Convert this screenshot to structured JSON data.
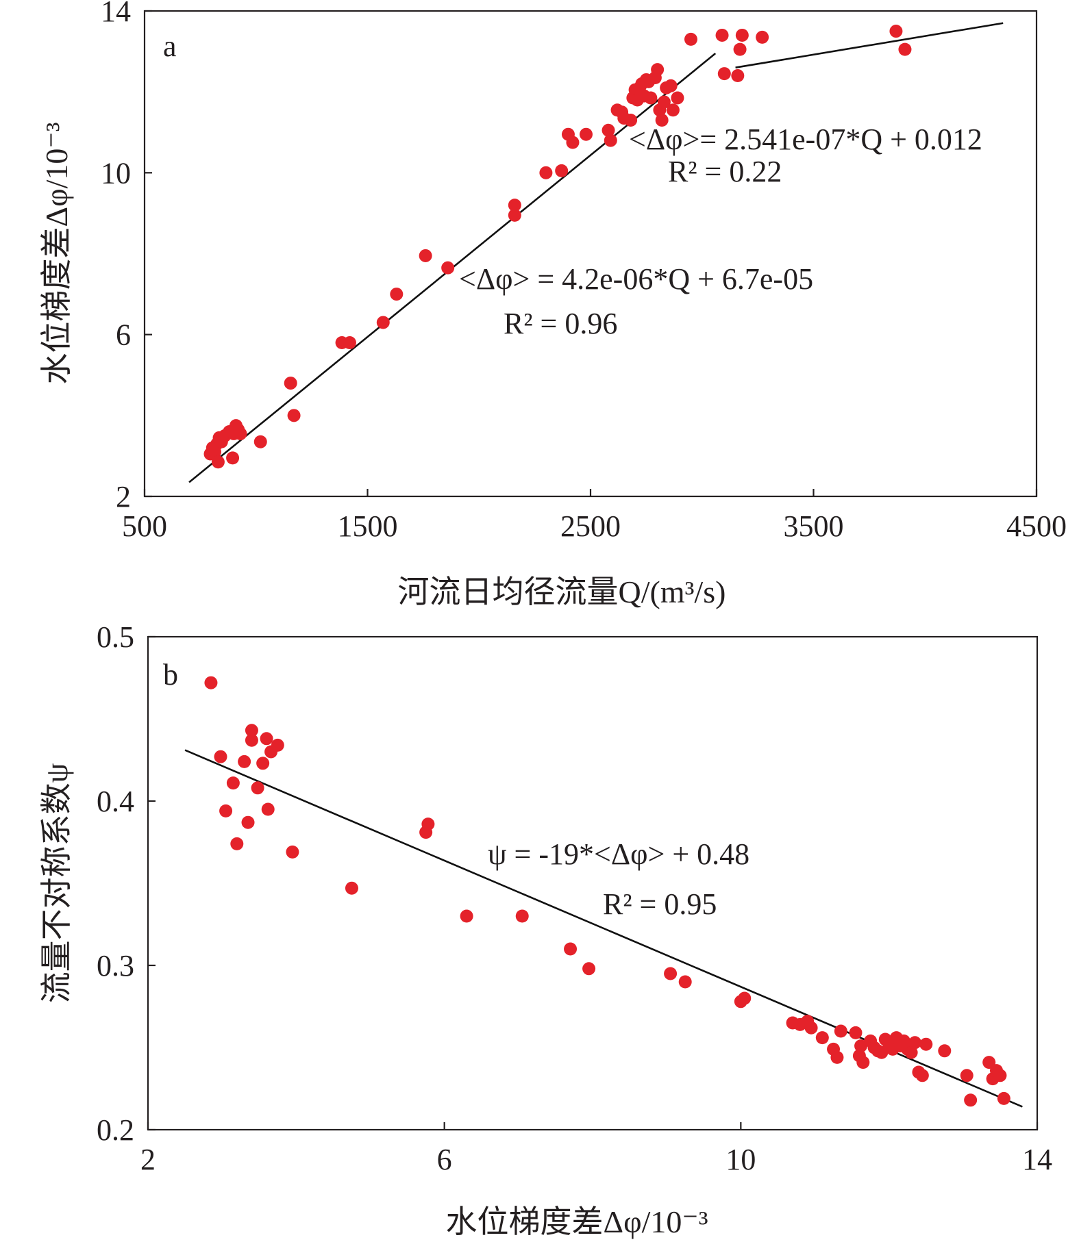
{
  "chart_data": [
    {
      "type": "scatter",
      "panel_label": "a",
      "xlabel": "河流日均径流量Q/(m³/s)",
      "ylabel": "水位梯度差Δφ/10⁻³",
      "xlim": [
        500,
        4500
      ],
      "ylim": [
        2,
        14
      ],
      "xticks": [
        "500",
        "1500",
        "2500",
        "3500",
        "4500"
      ],
      "xtick_values": [
        500,
        1500,
        2500,
        3500,
        4500
      ],
      "yticks": [
        "2",
        "6",
        "10",
        "14"
      ],
      "ytick_values": [
        2,
        6,
        10,
        14
      ],
      "annotations": [
        {
          "eq": "<Δφ>= 2.541e-07*Q + 0.012",
          "r2": "R² = 0.22"
        },
        {
          "eq": "<Δφ> = 4.2e-06*Q + 6.7e-05",
          "r2": "R² = 0.96"
        }
      ],
      "fit_lines": [
        {
          "x": [
            700,
            3060
          ],
          "y": [
            2.35,
            12.95
          ]
        },
        {
          "x": [
            3150,
            4350
          ],
          "y": [
            12.6,
            13.7
          ]
        }
      ],
      "series": [
        {
          "points": [
            [
              795,
              3.05
            ],
            [
              805,
              3.2
            ],
            [
              815,
              3.1
            ],
            [
              825,
              3.3
            ],
            [
              835,
              3.45
            ],
            [
              845,
              3.35
            ],
            [
              830,
              2.85
            ],
            [
              860,
              3.5
            ],
            [
              880,
              3.6
            ],
            [
              900,
              3.55
            ],
            [
              910,
              3.75
            ],
            [
              920,
              3.65
            ],
            [
              930,
              3.55
            ],
            [
              895,
              2.95
            ],
            [
              1020,
              3.35
            ],
            [
              1155,
              4.8
            ],
            [
              1170,
              4.0
            ],
            [
              1385,
              5.8
            ],
            [
              1420,
              5.8
            ],
            [
              1570,
              6.3
            ],
            [
              1630,
              7.0
            ],
            [
              1760,
              7.95
            ],
            [
              1860,
              7.65
            ],
            [
              2160,
              9.2
            ],
            [
              2160,
              8.95
            ],
            [
              2300,
              10.0
            ],
            [
              2370,
              10.05
            ],
            [
              2400,
              10.95
            ],
            [
              2420,
              10.75
            ],
            [
              2480,
              10.95
            ],
            [
              2580,
              11.05
            ],
            [
              2590,
              10.8
            ],
            [
              2620,
              11.55
            ],
            [
              2640,
              11.5
            ],
            [
              2650,
              11.35
            ],
            [
              2680,
              11.3
            ],
            [
              2690,
              11.85
            ],
            [
              2700,
              12.05
            ],
            [
              2710,
              11.8
            ],
            [
              2720,
              12.1
            ],
            [
              2730,
              12.2
            ],
            [
              2740,
              11.9
            ],
            [
              2750,
              12.3
            ],
            [
              2760,
              12.25
            ],
            [
              2770,
              11.85
            ],
            [
              2790,
              12.35
            ],
            [
              2800,
              12.55
            ],
            [
              2810,
              11.55
            ],
            [
              2820,
              11.3
            ],
            [
              2830,
              11.75
            ],
            [
              2840,
              12.1
            ],
            [
              2860,
              12.15
            ],
            [
              2870,
              11.55
            ],
            [
              2890,
              11.85
            ],
            [
              2950,
              13.3
            ],
            [
              3090,
              13.4
            ],
            [
              3100,
              12.45
            ],
            [
              3160,
              12.4
            ],
            [
              3170,
              13.05
            ],
            [
              3180,
              13.4
            ],
            [
              3270,
              13.35
            ],
            [
              3870,
              13.5
            ],
            [
              3910,
              13.05
            ]
          ]
        }
      ]
    },
    {
      "type": "scatter",
      "panel_label": "b",
      "xlabel": "水位梯度差Δφ/10⁻³",
      "ylabel": "流量不对称系数ψ",
      "xlim": [
        2,
        14
      ],
      "ylim": [
        0.2,
        0.5
      ],
      "xticks": [
        "2",
        "6",
        "10",
        "14"
      ],
      "xtick_values": [
        2,
        6,
        10,
        14
      ],
      "yticks": [
        "0.2",
        "0.3",
        "0.4",
        "0.5"
      ],
      "ytick_values": [
        0.2,
        0.3,
        0.4,
        0.5
      ],
      "annotations": [
        {
          "eq": "ψ = -19*<Δφ> + 0.48",
          "r2": "R² = 0.95"
        }
      ],
      "fit_lines": [
        {
          "x": [
            2.5,
            13.8
          ],
          "y": [
            0.431,
            0.214
          ]
        }
      ],
      "series": [
        {
          "points": [
            [
              2.85,
              0.472
            ],
            [
              2.98,
              0.427
            ],
            [
              3.05,
              0.394
            ],
            [
              3.15,
              0.411
            ],
            [
              3.2,
              0.374
            ],
            [
              3.3,
              0.424
            ],
            [
              3.35,
              0.387
            ],
            [
              3.4,
              0.437
            ],
            [
              3.4,
              0.443
            ],
            [
              3.48,
              0.408
            ],
            [
              3.55,
              0.423
            ],
            [
              3.6,
              0.438
            ],
            [
              3.62,
              0.395
            ],
            [
              3.66,
              0.43
            ],
            [
              3.75,
              0.434
            ],
            [
              3.95,
              0.369
            ],
            [
              4.75,
              0.347
            ],
            [
              5.75,
              0.381
            ],
            [
              5.78,
              0.386
            ],
            [
              6.3,
              0.33
            ],
            [
              7.05,
              0.33
            ],
            [
              7.7,
              0.31
            ],
            [
              7.95,
              0.298
            ],
            [
              9.05,
              0.295
            ],
            [
              9.25,
              0.29
            ],
            [
              10.0,
              0.278
            ],
            [
              10.05,
              0.28
            ],
            [
              10.7,
              0.265
            ],
            [
              10.8,
              0.264
            ],
            [
              10.9,
              0.266
            ],
            [
              10.95,
              0.262
            ],
            [
              11.1,
              0.256
            ],
            [
              11.25,
              0.249
            ],
            [
              11.3,
              0.244
            ],
            [
              11.35,
              0.26
            ],
            [
              11.55,
              0.259
            ],
            [
              11.6,
              0.245
            ],
            [
              11.62,
              0.251
            ],
            [
              11.65,
              0.241
            ],
            [
              11.75,
              0.254
            ],
            [
              11.8,
              0.25
            ],
            [
              11.85,
              0.248
            ],
            [
              11.9,
              0.247
            ],
            [
              11.95,
              0.255
            ],
            [
              12.0,
              0.252
            ],
            [
              12.05,
              0.249
            ],
            [
              12.1,
              0.256
            ],
            [
              12.15,
              0.251
            ],
            [
              12.2,
              0.254
            ],
            [
              12.25,
              0.249
            ],
            [
              12.3,
              0.247
            ],
            [
              12.35,
              0.253
            ],
            [
              12.4,
              0.235
            ],
            [
              12.45,
              0.233
            ],
            [
              12.5,
              0.252
            ],
            [
              12.75,
              0.248
            ],
            [
              13.05,
              0.233
            ],
            [
              13.1,
              0.218
            ],
            [
              13.35,
              0.241
            ],
            [
              13.4,
              0.231
            ],
            [
              13.45,
              0.236
            ],
            [
              13.5,
              0.233
            ],
            [
              13.55,
              0.219
            ]
          ]
        }
      ]
    }
  ]
}
